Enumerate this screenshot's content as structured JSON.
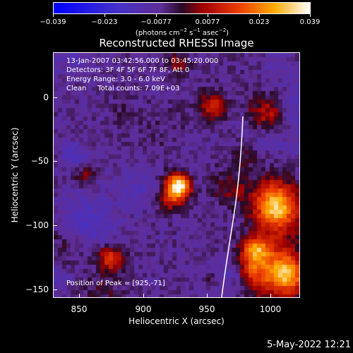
{
  "colorbar": {
    "ticks": [
      "−0.039",
      "−0.023",
      "−0.0077",
      "0.0077",
      "0.023",
      "0.039"
    ],
    "units_prefix": "(photons cm",
    "units_exp1": "−2",
    "units_mid1": " s",
    "units_exp2": "−1",
    "units_mid2": " asec",
    "units_exp3": "−2",
    "units_suffix": ")"
  },
  "title": "Reconstructed RHESSI Image",
  "info": {
    "time_range": "13-Jan-2007 03:42:56.000 to 03:45:20.000",
    "detectors": "Detectors: 3F 4F 5F 6F 7F 8F, Att 0",
    "energy": "Energy Range: 3.0 - 6.0 keV",
    "clean": "Clean     Total counts: 7.09E+03",
    "peak": "Position of Peak = [925,-71]"
  },
  "axes": {
    "xlabel": "Heliocentric X (arcsec)",
    "ylabel": "Heliocentric Y (arcsec)",
    "xticks": [
      "850",
      "900",
      "950",
      "1000"
    ],
    "yticks": [
      "0",
      "−50",
      "−100",
      "−150"
    ]
  },
  "timestamp": "5-May-2022 12:21"
}
